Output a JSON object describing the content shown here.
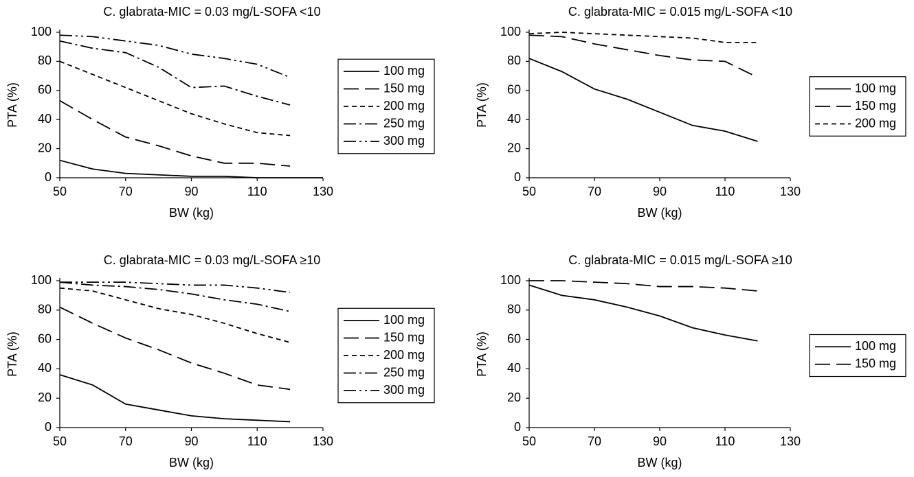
{
  "chart_data": [
    {
      "type": "line",
      "title": "C. glabrata-MIC = 0.03 mg/L-SOFA <10",
      "x_label": "BW (kg)",
      "y_label": "PTA (%)",
      "x": [
        50,
        60,
        70,
        80,
        90,
        100,
        110,
        120,
        130
      ],
      "series": [
        {
          "name": "100 mg",
          "color": "#000000",
          "dash": "solid",
          "values": [
            12,
            6,
            3,
            2,
            1,
            1,
            0,
            0,
            0
          ]
        },
        {
          "name": "150 mg",
          "color": "#000000",
          "dash": "long-dash",
          "values": [
            53,
            40,
            28,
            22,
            15,
            10,
            10,
            8,
            null
          ]
        },
        {
          "name": "200 mg",
          "color": "#000000",
          "dash": "short-dash",
          "values": [
            80,
            71,
            62,
            53,
            44,
            37,
            31,
            29,
            null
          ]
        },
        {
          "name": "250 mg",
          "color": "#000000",
          "dash": "dash-dot",
          "values": [
            94,
            89,
            86,
            76,
            62,
            63,
            56,
            50,
            null
          ]
        },
        {
          "name": "300 mg",
          "color": "#000000",
          "dash": "dash-dot-dot",
          "values": [
            98,
            97,
            94,
            91,
            85,
            82,
            78,
            69,
            null
          ]
        }
      ],
      "xlim": [
        50,
        130
      ],
      "xticks": [
        50,
        70,
        90,
        110,
        130
      ],
      "ylim": [
        0,
        100
      ],
      "yticks": [
        0,
        20,
        40,
        60,
        80,
        100
      ],
      "legend": "right"
    },
    {
      "type": "line",
      "title": "C. glabrata-MIC = 0.015 mg/L-SOFA <10",
      "x_label": "BW (kg)",
      "y_label": "PTA (%)",
      "x": [
        50,
        60,
        70,
        80,
        90,
        100,
        110,
        120
      ],
      "series": [
        {
          "name": "100 mg",
          "color": "#000000",
          "dash": "solid",
          "values": [
            82,
            73,
            61,
            54,
            45,
            36,
            32,
            25
          ]
        },
        {
          "name": "150 mg",
          "color": "#000000",
          "dash": "long-dash",
          "values": [
            98,
            97,
            92,
            88,
            84,
            81,
            80,
            69
          ]
        },
        {
          "name": "200 mg",
          "color": "#000000",
          "dash": "short-dash",
          "values": [
            99,
            100,
            99,
            98,
            97,
            96,
            93,
            93
          ]
        }
      ],
      "xlim": [
        50,
        130
      ],
      "xticks": [
        50,
        70,
        90,
        110,
        130
      ],
      "ylim": [
        0,
        100
      ],
      "yticks": [
        0,
        20,
        40,
        60,
        80,
        100
      ],
      "legend": "right"
    },
    {
      "type": "line",
      "title": "C. glabrata-MIC = 0.03 mg/L-SOFA ≥10",
      "x_label": "BW (kg)",
      "y_label": "PTA (%)",
      "x": [
        50,
        60,
        70,
        80,
        90,
        100,
        110,
        120
      ],
      "series": [
        {
          "name": "100 mg",
          "color": "#000000",
          "dash": "solid",
          "values": [
            36,
            29,
            16,
            12,
            8,
            6,
            5,
            4
          ]
        },
        {
          "name": "150 mg",
          "color": "#000000",
          "dash": "long-dash",
          "values": [
            82,
            71,
            61,
            53,
            44,
            37,
            29,
            26
          ]
        },
        {
          "name": "200 mg",
          "color": "#000000",
          "dash": "short-dash",
          "values": [
            95,
            93,
            87,
            81,
            77,
            71,
            64,
            58
          ]
        },
        {
          "name": "250 mg",
          "color": "#000000",
          "dash": "dash-dot",
          "values": [
            99,
            97,
            96,
            94,
            91,
            87,
            84,
            79
          ]
        },
        {
          "name": "300 mg",
          "color": "#000000",
          "dash": "dash-dot-dot",
          "values": [
            99,
            99,
            99,
            98,
            97,
            97,
            95,
            92
          ]
        }
      ],
      "xlim": [
        50,
        130
      ],
      "xticks": [
        50,
        70,
        90,
        110,
        130
      ],
      "ylim": [
        0,
        100
      ],
      "yticks": [
        0,
        20,
        40,
        60,
        80,
        100
      ],
      "legend": "right"
    },
    {
      "type": "line",
      "title": "C. glabrata-MIC = 0.015 mg/L-SOFA ≥10",
      "x_label": "BW (kg)",
      "y_label": "PTA (%)",
      "x": [
        50,
        60,
        70,
        80,
        90,
        100,
        110,
        120
      ],
      "series": [
        {
          "name": "100 mg",
          "color": "#000000",
          "dash": "solid",
          "values": [
            97,
            90,
            87,
            82,
            76,
            68,
            63,
            59
          ]
        },
        {
          "name": "150 mg",
          "color": "#000000",
          "dash": "long-dash",
          "values": [
            100,
            100,
            99,
            98,
            96,
            96,
            95,
            93
          ]
        }
      ],
      "xlim": [
        50,
        130
      ],
      "xticks": [
        50,
        70,
        90,
        110,
        130
      ],
      "ylim": [
        0,
        100
      ],
      "yticks": [
        0,
        20,
        40,
        60,
        80,
        100
      ],
      "legend": "right"
    }
  ]
}
